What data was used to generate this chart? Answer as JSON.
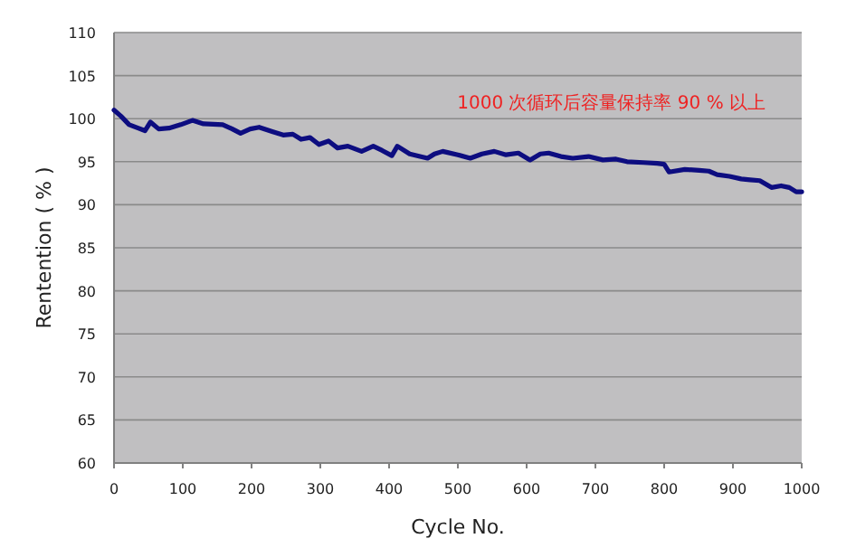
{
  "chart_data": {
    "type": "line",
    "xlabel": "Cycle No.",
    "ylabel": "Rentention ( % )",
    "annotations": [
      "1000 次循环后容量保持率 90 % 以上"
    ],
    "x": [
      0,
      10,
      22,
      35,
      45,
      53,
      65,
      80,
      97,
      114,
      130,
      158,
      172,
      184,
      198,
      211,
      230,
      246,
      260,
      272,
      285,
      298,
      312,
      325,
      340,
      360,
      377,
      390,
      404,
      412,
      430,
      445,
      456,
      466,
      478,
      500,
      518,
      535,
      553,
      570,
      588,
      605,
      620,
      632,
      650,
      667,
      690,
      711,
      730,
      746,
      770,
      790,
      800,
      807,
      830,
      851,
      865,
      877,
      895,
      912,
      925,
      939,
      956,
      970,
      982,
      992,
      1000
    ],
    "series": [
      {
        "color": "#0d0d80",
        "values": [
          101,
          100.3,
          99.3,
          98.9,
          98.6,
          99.6,
          98.8,
          98.9,
          99.3,
          99.8,
          99.4,
          99.3,
          98.8,
          98.3,
          98.8,
          99,
          98.5,
          98.1,
          98.2,
          97.6,
          97.8,
          97,
          97.4,
          96.6,
          96.8,
          96.2,
          96.8,
          96.3,
          95.7,
          96.8,
          95.9,
          95.6,
          95.4,
          95.9,
          96.2,
          95.8,
          95.4,
          95.9,
          96.2,
          95.8,
          96,
          95.2,
          95.9,
          96,
          95.6,
          95.4,
          95.6,
          95.2,
          95.3,
          95,
          94.9,
          94.8,
          94.7,
          93.8,
          94.1,
          94,
          93.9,
          93.5,
          93.3,
          93,
          92.9,
          92.8,
          92,
          92.2,
          92,
          91.5,
          91.5
        ]
      }
    ],
    "xlim": [
      0,
      1000
    ],
    "xticks": [
      0,
      100,
      200,
      300,
      400,
      500,
      600,
      700,
      800,
      900,
      1000
    ],
    "ylim": [
      60,
      110
    ],
    "yticks": [
      60,
      65,
      70,
      75,
      80,
      85,
      90,
      95,
      100,
      105,
      110
    ],
    "grid": "y"
  }
}
